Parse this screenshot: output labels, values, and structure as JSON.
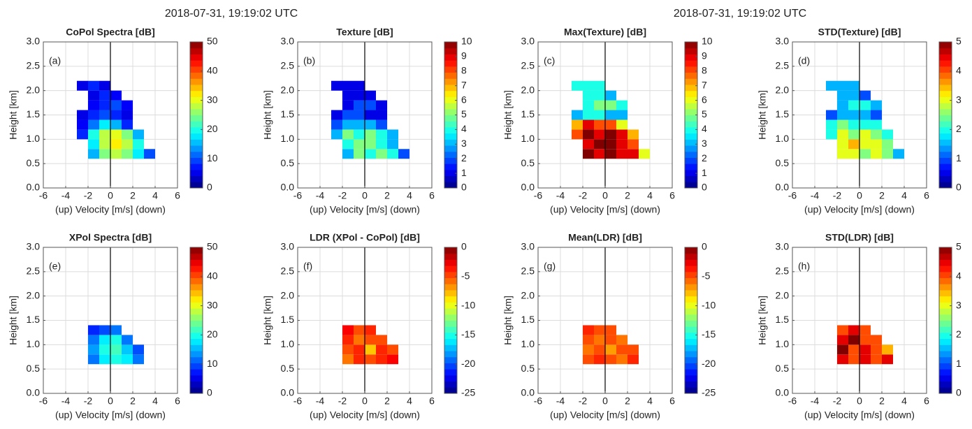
{
  "suptitles": [
    "2018-07-31, 19:19:02 UTC",
    "2018-07-31, 19:19:02 UTC"
  ],
  "chart_data": [
    {
      "type": "heatmap",
      "title": "CoPol Spectra [dB]",
      "panel_label": "(a)",
      "xlabel": "(up) Velocity [m/s] (down)",
      "ylabel": "Height [km]",
      "xlim": [
        -6,
        6
      ],
      "xticks": [
        -6,
        -4,
        -2,
        0,
        2,
        4,
        6
      ],
      "ylim": [
        0,
        3
      ],
      "yticks": [
        {
          "value": 0,
          "label": "0.0"
        },
        {
          "value": 0.5,
          "label": "0.5"
        },
        {
          "value": 1,
          "label": "1.0"
        },
        {
          "value": 1.5,
          "label": "1.5"
        },
        {
          "value": 2,
          "label": "2.0"
        },
        {
          "value": 2.5,
          "label": "2.5"
        },
        {
          "value": 3,
          "label": "3.0"
        }
      ],
      "clim": [
        0,
        50
      ],
      "cticks": [
        0,
        10,
        20,
        30,
        40,
        50
      ],
      "colormap": "jet",
      "grid": true,
      "zero_line": true,
      "xbins": [
        -3,
        -2,
        -1,
        0,
        1,
        2,
        3,
        4
      ],
      "ybins": [
        0.6,
        0.8,
        1.0,
        1.2,
        1.4,
        1.6,
        1.8,
        2.0,
        2.2
      ],
      "values": [
        [
          null,
          15,
          25,
          28,
          25,
          18,
          10
        ],
        [
          null,
          18,
          28,
          32,
          28,
          20,
          null
        ],
        [
          8,
          20,
          28,
          30,
          25,
          15,
          null
        ],
        [
          6,
          12,
          18,
          15,
          8,
          null,
          null
        ],
        [
          5,
          8,
          10,
          8,
          5,
          null,
          null
        ],
        [
          null,
          6,
          8,
          10,
          6,
          null,
          null
        ],
        [
          null,
          5,
          8,
          6,
          null,
          null,
          null
        ],
        [
          5,
          8,
          5,
          null,
          null,
          null,
          null
        ]
      ]
    },
    {
      "type": "heatmap",
      "title": "Texture [dB]",
      "panel_label": "(b)",
      "xlabel": "(up) Velocity [m/s] (down)",
      "ylabel": "Height [km]",
      "xlim": [
        -6,
        6
      ],
      "xticks": [
        -6,
        -4,
        -2,
        0,
        2,
        4,
        6
      ],
      "ylim": [
        0,
        3
      ],
      "yticks": [
        {
          "value": 0,
          "label": "0.0"
        },
        {
          "value": 0.5,
          "label": "0.5"
        },
        {
          "value": 1,
          "label": "1.0"
        },
        {
          "value": 1.5,
          "label": "1.5"
        },
        {
          "value": 2,
          "label": "2.0"
        },
        {
          "value": 2.5,
          "label": "2.5"
        },
        {
          "value": 3,
          "label": "3.0"
        }
      ],
      "clim": [
        0,
        10
      ],
      "cticks": [
        0,
        1,
        2,
        3,
        4,
        5,
        6,
        7,
        8,
        9,
        10
      ],
      "colormap": "jet",
      "grid": true,
      "zero_line": true,
      "xbins": [
        -3,
        -2,
        -1,
        0,
        1,
        2,
        3,
        4
      ],
      "ybins": [
        0.6,
        0.8,
        1.0,
        1.2,
        1.4,
        1.6,
        1.8,
        2.0,
        2.2
      ],
      "values": [
        [
          null,
          3,
          5,
          4,
          5,
          4,
          2
        ],
        [
          null,
          4,
          5,
          5,
          4,
          3,
          null
        ],
        [
          3,
          5,
          4,
          5,
          4,
          3,
          null
        ],
        [
          2,
          3,
          3,
          3,
          2,
          null,
          null
        ],
        [
          1,
          2,
          2,
          1,
          1,
          null,
          null
        ],
        [
          null,
          1,
          2,
          2,
          1,
          null,
          null
        ],
        [
          null,
          1,
          1,
          1,
          null,
          null,
          null
        ],
        [
          1,
          1,
          1,
          null,
          null,
          null,
          null
        ]
      ]
    },
    {
      "type": "heatmap",
      "title": "Max(Texture) [dB]",
      "panel_label": "(c)",
      "xlabel": "(up) Velocity [m/s] (down)",
      "ylabel": "Height [km]",
      "xlim": [
        -6,
        6
      ],
      "xticks": [
        -6,
        -4,
        -2,
        0,
        2,
        4,
        6
      ],
      "ylim": [
        0,
        3
      ],
      "yticks": [
        {
          "value": 0,
          "label": "0.0"
        },
        {
          "value": 0.5,
          "label": "0.5"
        },
        {
          "value": 1,
          "label": "1.0"
        },
        {
          "value": 1.5,
          "label": "1.5"
        },
        {
          "value": 2,
          "label": "2.0"
        },
        {
          "value": 2.5,
          "label": "2.5"
        },
        {
          "value": 3,
          "label": "3.0"
        }
      ],
      "clim": [
        0,
        10
      ],
      "cticks": [
        0,
        1,
        2,
        3,
        4,
        5,
        6,
        7,
        8,
        9,
        10
      ],
      "colormap": "jet",
      "grid": true,
      "zero_line": true,
      "xbins": [
        -3,
        -2,
        -1,
        0,
        1,
        2,
        3,
        4
      ],
      "ybins": [
        0.6,
        0.8,
        1.0,
        1.2,
        1.4,
        1.6,
        1.8,
        2.0,
        2.2
      ],
      "values": [
        [
          null,
          10,
          9,
          10,
          9,
          9,
          6
        ],
        [
          null,
          9,
          10,
          10,
          9,
          8,
          null
        ],
        [
          8,
          10,
          9,
          10,
          9,
          7,
          null
        ],
        [
          7,
          9,
          8,
          8,
          6,
          null,
          null
        ],
        [
          3,
          4,
          4,
          3,
          3,
          null,
          null
        ],
        [
          null,
          4,
          5,
          5,
          4,
          null,
          null
        ],
        [
          null,
          4,
          4,
          3,
          null,
          null,
          null
        ],
        [
          4,
          4,
          4,
          null,
          null,
          null,
          null
        ]
      ]
    },
    {
      "type": "heatmap",
      "title": "STD(Texture) [dB]",
      "panel_label": "(d)",
      "xlabel": "(up) Velocity [m/s] (down)",
      "ylabel": "Height [km]",
      "xlim": [
        -6,
        6
      ],
      "xticks": [
        -6,
        -4,
        -2,
        0,
        2,
        4,
        6
      ],
      "ylim": [
        0,
        3
      ],
      "yticks": [
        {
          "value": 0,
          "label": "0.0"
        },
        {
          "value": 0.5,
          "label": "0.5"
        },
        {
          "value": 1,
          "label": "1.0"
        },
        {
          "value": 1.5,
          "label": "1.5"
        },
        {
          "value": 2,
          "label": "2.0"
        },
        {
          "value": 2.5,
          "label": "2.5"
        },
        {
          "value": 3,
          "label": "3.0"
        }
      ],
      "clim": [
        0,
        5
      ],
      "cticks": [
        0,
        1,
        2,
        3,
        4,
        5
      ],
      "colormap": "jet",
      "grid": true,
      "zero_line": true,
      "xbins": [
        -3,
        -2,
        -1,
        0,
        1,
        2,
        3,
        4
      ],
      "ybins": [
        0.6,
        0.8,
        1.0,
        1.2,
        1.4,
        1.6,
        1.8,
        2.0,
        2.2
      ],
      "values": [
        [
          null,
          3,
          3,
          2.5,
          3,
          2.5,
          1.5
        ],
        [
          null,
          3,
          3.5,
          3,
          3,
          2.5,
          null
        ],
        [
          2,
          3,
          2.5,
          3,
          2.5,
          2,
          null
        ],
        [
          2,
          2.5,
          2,
          2,
          2,
          null,
          null
        ],
        [
          1,
          1.5,
          1.5,
          1.5,
          1,
          null,
          null
        ],
        [
          null,
          1.5,
          2,
          2,
          1.5,
          null,
          null
        ],
        [
          null,
          1.5,
          1.5,
          1,
          null,
          null,
          null
        ],
        [
          1.5,
          1.5,
          1.5,
          null,
          null,
          null,
          null
        ]
      ]
    },
    {
      "type": "heatmap",
      "title": "XPol Spectra [dB]",
      "panel_label": "(e)",
      "xlabel": "(up) Velocity [m/s] (down)",
      "ylabel": "Height [km]",
      "xlim": [
        -6,
        6
      ],
      "xticks": [
        -6,
        -4,
        -2,
        0,
        2,
        4,
        6
      ],
      "ylim": [
        0,
        3
      ],
      "yticks": [
        {
          "value": 0,
          "label": "0.0"
        },
        {
          "value": 0.5,
          "label": "0.5"
        },
        {
          "value": 1,
          "label": "1.0"
        },
        {
          "value": 1.5,
          "label": "1.5"
        },
        {
          "value": 2,
          "label": "2.0"
        },
        {
          "value": 2.5,
          "label": "2.5"
        },
        {
          "value": 3,
          "label": "3.0"
        }
      ],
      "clim": [
        0,
        50
      ],
      "cticks": [
        0,
        10,
        20,
        30,
        40,
        50
      ],
      "colormap": "jet",
      "grid": true,
      "zero_line": true,
      "xbins": [
        -3,
        -2,
        -1,
        0,
        1,
        2,
        3,
        4
      ],
      "ybins": [
        0.6,
        0.8,
        1.0,
        1.2,
        1.4,
        1.6,
        1.8,
        2.0,
        2.2
      ],
      "values": [
        [
          null,
          12,
          18,
          20,
          18,
          12,
          null
        ],
        [
          null,
          14,
          20,
          22,
          16,
          10,
          null
        ],
        [
          null,
          12,
          18,
          20,
          12,
          null,
          null
        ],
        [
          null,
          8,
          10,
          12,
          null,
          null,
          null
        ],
        [
          null,
          null,
          null,
          null,
          null,
          null,
          null
        ],
        [
          null,
          null,
          null,
          null,
          null,
          null,
          null
        ],
        [
          null,
          null,
          null,
          null,
          null,
          null,
          null
        ],
        [
          null,
          null,
          null,
          null,
          null,
          null,
          null
        ]
      ]
    },
    {
      "type": "heatmap",
      "title": "LDR (XPol - CoPol) [dB]",
      "panel_label": "(f)",
      "xlabel": "(up) Velocity [m/s] (down)",
      "ylabel": "Height [km]",
      "xlim": [
        -6,
        6
      ],
      "xticks": [
        -6,
        -4,
        -2,
        0,
        2,
        4,
        6
      ],
      "ylim": [
        0,
        3
      ],
      "yticks": [
        {
          "value": 0,
          "label": "0.0"
        },
        {
          "value": 0.5,
          "label": "0.5"
        },
        {
          "value": 1,
          "label": "1.0"
        },
        {
          "value": 1.5,
          "label": "1.5"
        },
        {
          "value": 2,
          "label": "2.0"
        },
        {
          "value": 2.5,
          "label": "2.5"
        },
        {
          "value": 3,
          "label": "3.0"
        }
      ],
      "clim": [
        -25,
        0
      ],
      "cticks": [
        -25,
        -20,
        -15,
        -10,
        -5,
        0
      ],
      "colormap": "jet",
      "grid": true,
      "zero_line": true,
      "xbins": [
        -3,
        -2,
        -1,
        0,
        1,
        2,
        3,
        4
      ],
      "ybins": [
        0.6,
        0.8,
        1.0,
        1.2,
        1.4,
        1.6,
        1.8,
        2.0,
        2.2
      ],
      "values": [
        [
          null,
          -6,
          -4,
          -5,
          -4,
          -3,
          null
        ],
        [
          null,
          -5,
          -4,
          -8,
          -4,
          -5,
          null
        ],
        [
          null,
          -4,
          -6,
          -5,
          -5,
          null,
          null
        ],
        [
          null,
          -3,
          -5,
          -4,
          null,
          null,
          null
        ],
        [
          null,
          null,
          null,
          null,
          null,
          null,
          null
        ],
        [
          null,
          null,
          null,
          null,
          null,
          null,
          null
        ],
        [
          null,
          null,
          null,
          null,
          null,
          null,
          null
        ],
        [
          null,
          null,
          null,
          null,
          null,
          null,
          null
        ]
      ]
    },
    {
      "type": "heatmap",
      "title": "Mean(LDR) [dB]",
      "panel_label": "(g)",
      "xlabel": "(up) Velocity [m/s] (down)",
      "ylabel": "Height [km]",
      "xlim": [
        -6,
        6
      ],
      "xticks": [
        -6,
        -4,
        -2,
        0,
        2,
        4,
        6
      ],
      "ylim": [
        0,
        3
      ],
      "yticks": [
        {
          "value": 0,
          "label": "0.0"
        },
        {
          "value": 0.5,
          "label": "0.5"
        },
        {
          "value": 1,
          "label": "1.0"
        },
        {
          "value": 1.5,
          "label": "1.5"
        },
        {
          "value": 2,
          "label": "2.0"
        },
        {
          "value": 2.5,
          "label": "2.5"
        },
        {
          "value": 3,
          "label": "3.0"
        }
      ],
      "clim": [
        -25,
        0
      ],
      "cticks": [
        -25,
        -20,
        -15,
        -10,
        -5,
        0
      ],
      "colormap": "jet",
      "grid": true,
      "zero_line": true,
      "xbins": [
        -3,
        -2,
        -1,
        0,
        1,
        2,
        3,
        4
      ],
      "ybins": [
        0.6,
        0.8,
        1.0,
        1.2,
        1.4,
        1.6,
        1.8,
        2.0,
        2.2
      ],
      "values": [
        [
          null,
          -5,
          -4,
          -5,
          -6,
          -4,
          null
        ],
        [
          null,
          -6,
          -5,
          -7,
          -5,
          -5,
          null
        ],
        [
          null,
          -5,
          -6,
          -5,
          -6,
          null,
          null
        ],
        [
          null,
          -4,
          -5,
          -5,
          null,
          null,
          null
        ],
        [
          null,
          null,
          null,
          null,
          null,
          null,
          null
        ],
        [
          null,
          null,
          null,
          null,
          null,
          null,
          null
        ],
        [
          null,
          null,
          null,
          null,
          null,
          null,
          null
        ],
        [
          null,
          null,
          null,
          null,
          null,
          null,
          null
        ]
      ]
    },
    {
      "type": "heatmap",
      "title": "STD(LDR) [dB]",
      "panel_label": "(h)",
      "xlabel": "(up) Velocity [m/s] (down)",
      "ylabel": "Height [km]",
      "xlim": [
        -6,
        6
      ],
      "xticks": [
        -6,
        -4,
        -2,
        0,
        2,
        4,
        6
      ],
      "ylim": [
        0,
        3
      ],
      "yticks": [
        {
          "value": 0,
          "label": "0.0"
        },
        {
          "value": 0.5,
          "label": "0.5"
        },
        {
          "value": 1,
          "label": "1.0"
        },
        {
          "value": 1.5,
          "label": "1.5"
        },
        {
          "value": 2,
          "label": "2.0"
        },
        {
          "value": 2.5,
          "label": "2.5"
        },
        {
          "value": 3,
          "label": "3.0"
        }
      ],
      "clim": [
        0,
        5
      ],
      "cticks": [
        0,
        1,
        2,
        3,
        4,
        5
      ],
      "colormap": "jet",
      "grid": true,
      "zero_line": true,
      "xbins": [
        -3,
        -2,
        -1,
        0,
        1,
        2,
        3,
        4
      ],
      "ybins": [
        0.6,
        0.8,
        1.0,
        1.2,
        1.4,
        1.6,
        1.8,
        2.0,
        2.2
      ],
      "values": [
        [
          null,
          4.5,
          4,
          4.5,
          4,
          4.5,
          null
        ],
        [
          null,
          5,
          4,
          4.5,
          4,
          3.5,
          null
        ],
        [
          null,
          4.5,
          5,
          4,
          4,
          null,
          null
        ],
        [
          null,
          4,
          4.5,
          4,
          null,
          null,
          null
        ],
        [
          null,
          null,
          null,
          null,
          null,
          null,
          null
        ],
        [
          null,
          null,
          null,
          null,
          null,
          null,
          null
        ],
        [
          null,
          null,
          null,
          null,
          null,
          null,
          null
        ],
        [
          null,
          null,
          null,
          null,
          null,
          null,
          null
        ]
      ]
    }
  ]
}
